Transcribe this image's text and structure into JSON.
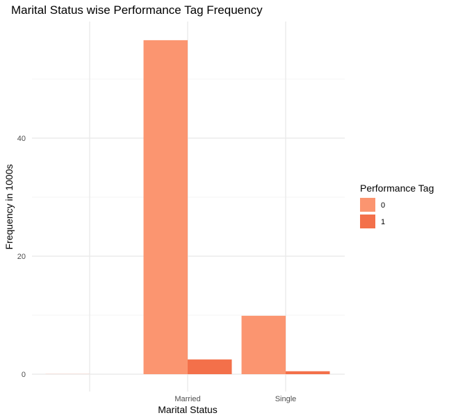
{
  "chart_data": {
    "type": "bar",
    "title": "Marital Status wise Performance Tag Frequency",
    "xlabel": "Marital Status",
    "ylabel": "Frequency in 1000s",
    "categories": [
      "",
      "Married",
      "Single"
    ],
    "series": [
      {
        "name": "0",
        "values": [
          0.02,
          56.6,
          9.9
        ],
        "color": "#FB9570"
      },
      {
        "name": "1",
        "values": [
          0.0,
          2.5,
          0.5
        ],
        "color": "#F3704A"
      }
    ],
    "ylim": [
      0,
      60
    ],
    "yticks": [
      0,
      20,
      40
    ],
    "grid": true,
    "legend": {
      "title": "Performance Tag",
      "placement": "right"
    }
  }
}
